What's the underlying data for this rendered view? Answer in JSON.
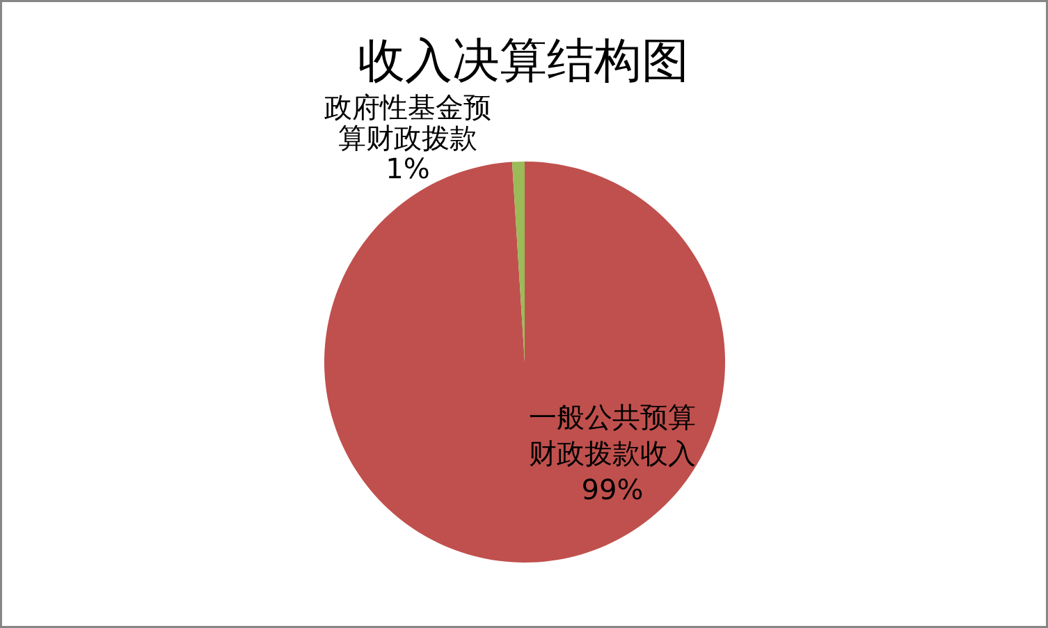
{
  "chart_data": {
    "type": "pie",
    "title": "收入决算结构图",
    "categories": [
      "一般公共预算财政拨款收入",
      "政府性基金预算财政拨款"
    ],
    "values": [
      99,
      1
    ],
    "colors": [
      "#c0504d",
      "#9bbb59"
    ],
    "value_labels": [
      "99%",
      "1%"
    ]
  }
}
